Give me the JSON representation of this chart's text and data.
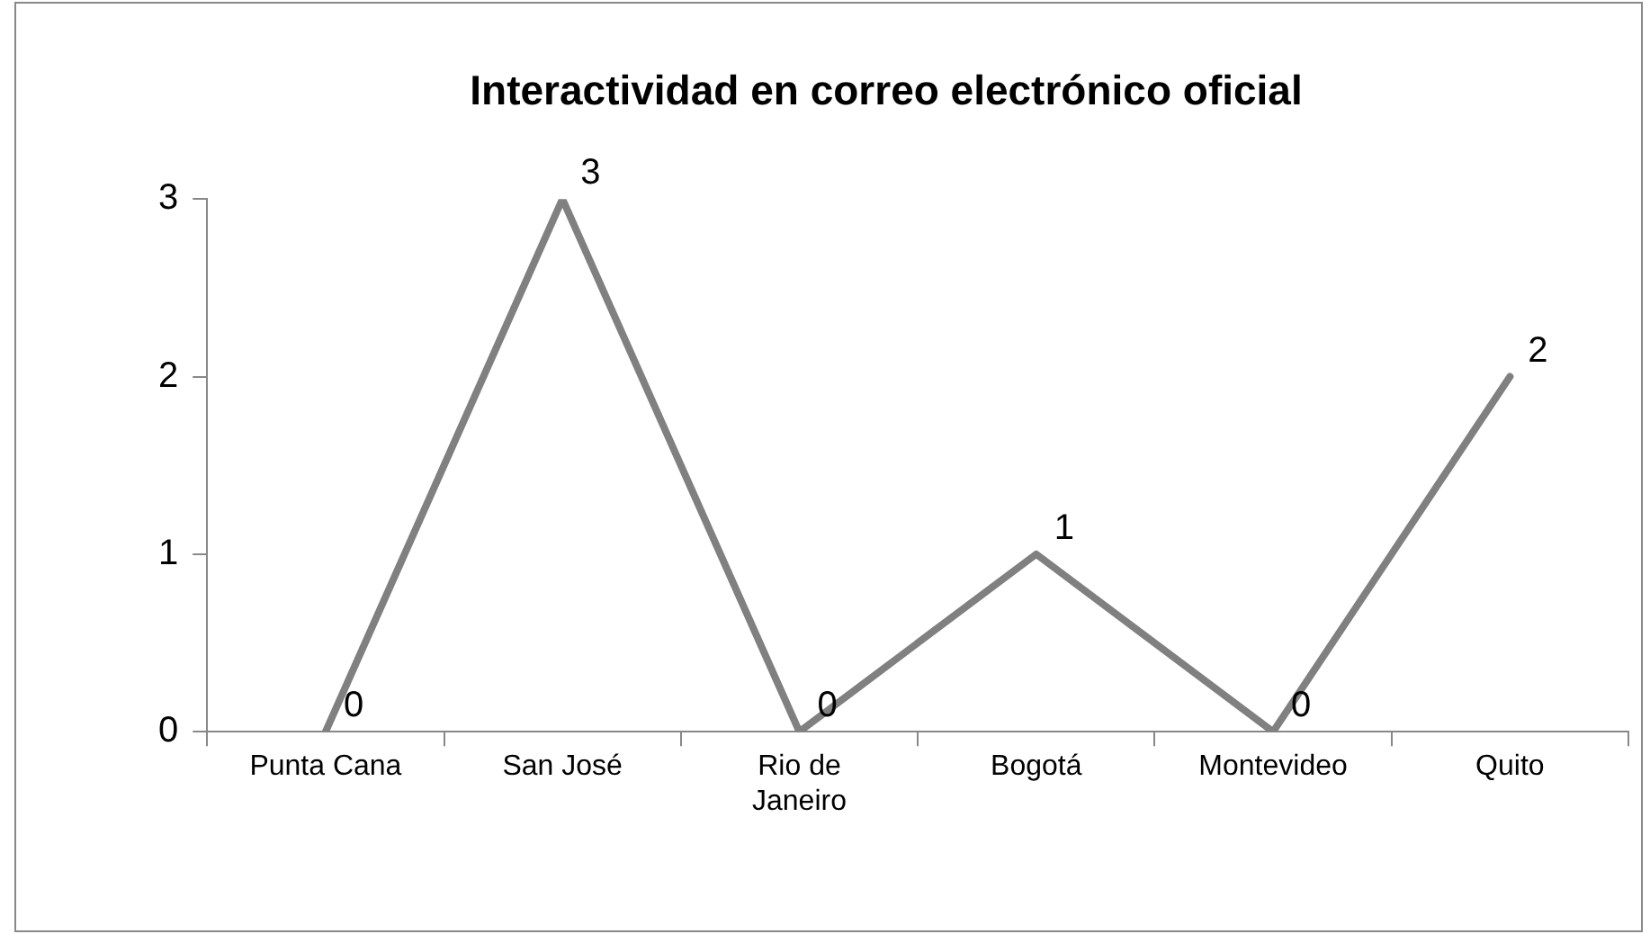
{
  "chart_data": {
    "type": "line",
    "title": "Interactividad en correo electrónico oficial",
    "categories": [
      "Punta Cana",
      "San José",
      "Rio de Janeiro",
      "Bogotá",
      "Montevideo",
      "Quito"
    ],
    "series": [
      {
        "color": "#808080",
        "values": [
          0,
          3,
          0,
          1,
          0,
          2
        ]
      }
    ],
    "ylim": [
      0,
      3
    ],
    "yticks": [
      0,
      1,
      2,
      3
    ],
    "grid": false,
    "legend": false,
    "marker": "none",
    "line_style": "solid",
    "data_labels": true
  }
}
